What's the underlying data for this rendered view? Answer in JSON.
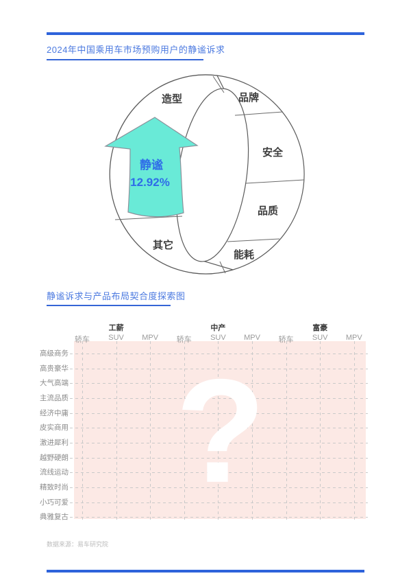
{
  "accent": "#2E63DB",
  "section1": {
    "title": "2024年中国乘用车市场预购用户的静谧诉求"
  },
  "ring": {
    "segments": [
      "造型",
      "品牌",
      "安全",
      "品质",
      "能耗",
      "其它"
    ],
    "highlight": {
      "label": "静谧",
      "value": "12.92%"
    },
    "colors": {
      "arrow": "#69EAD7",
      "arrow_text": "#2F6CE8",
      "outline": "#5a5a5a"
    }
  },
  "section2": {
    "title": "静谧诉求与产品布局契合度探索图"
  },
  "grid": {
    "groups": [
      "工薪",
      "中产",
      "富豪"
    ],
    "sub_headers": [
      "轿车",
      "SUV",
      "MPV"
    ],
    "rows": [
      "高级商务",
      "高贵豪华",
      "大气高端",
      "主流品质",
      "经济中庸",
      "皮实商用",
      "激进犀利",
      "越野硬朗",
      "流线运动",
      "精致时尚",
      "小巧可爱",
      "典雅复古"
    ],
    "placeholder": "?",
    "colors": {
      "bg": "#FCE9E5",
      "dash": "#C9C9C9"
    }
  },
  "footer": {
    "source": "数据来源：易车研究院"
  }
}
